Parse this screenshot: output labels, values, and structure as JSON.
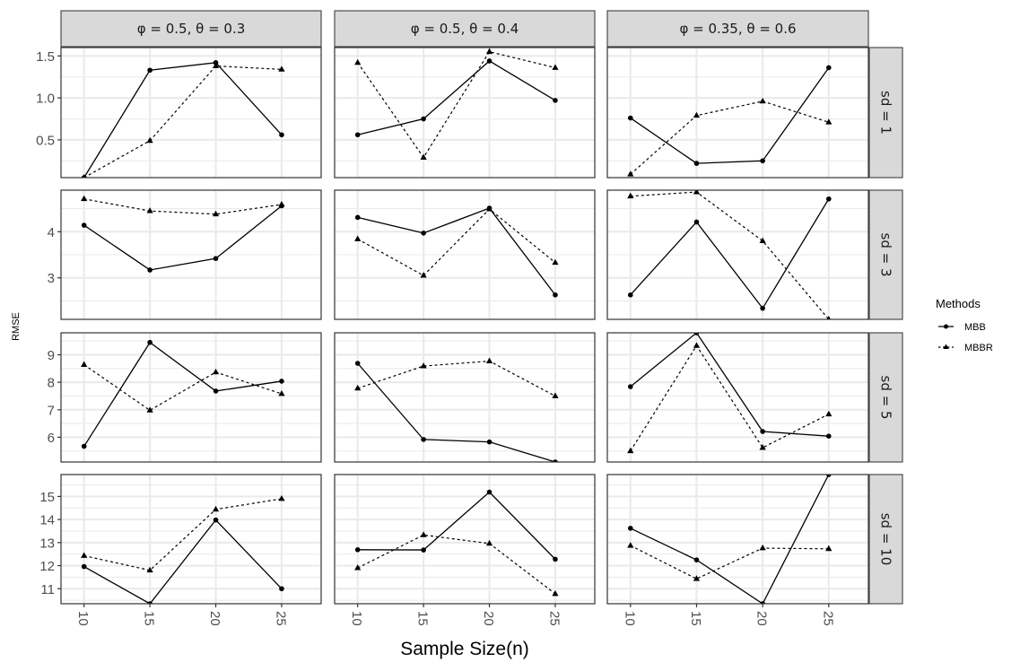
{
  "chart_data": {
    "type": "line",
    "title": "",
    "xlabel": "Sample Size(n)",
    "ylabel": "RMSE",
    "x": [
      10,
      15,
      20,
      25
    ],
    "x_tick_labels": [
      "10",
      "15",
      "20",
      "25"
    ],
    "grid": true,
    "legend": {
      "title": "Methods",
      "position": "right",
      "entries": [
        {
          "name": "MBB",
          "linetype": "solid",
          "marker": "circle"
        },
        {
          "name": "MBBR",
          "linetype": "dashed",
          "marker": "triangle"
        }
      ]
    },
    "columns": [
      {
        "label": "φ = 0.5, θ = 0.3"
      },
      {
        "label": "φ = 0.5, θ = 0.4"
      },
      {
        "label": "φ = 0.35, θ = 0.6"
      }
    ],
    "rows": [
      {
        "label": "sd = 1",
        "ylim": [
          0.05,
          1.6
        ],
        "ticks": [
          0.5,
          1.0,
          1.5
        ],
        "tick_labels": [
          "0.5",
          "1.0",
          "1.5"
        ],
        "minor": [
          0.25,
          0.75,
          1.25
        ]
      },
      {
        "label": "sd = 3",
        "ylim": [
          2.1,
          4.9
        ],
        "ticks": [
          3,
          4
        ],
        "tick_labels": [
          "3",
          "4"
        ],
        "minor": [
          2.5,
          3.5,
          4.5
        ]
      },
      {
        "label": "sd = 5",
        "ylim": [
          5.1,
          9.8
        ],
        "ticks": [
          6,
          7,
          8,
          9
        ],
        "tick_labels": [
          "6",
          "7",
          "8",
          "9"
        ],
        "minor": [
          5.5,
          6.5,
          7.5,
          8.5,
          9.5
        ]
      },
      {
        "label": "sd = 10",
        "ylim": [
          10.35,
          15.95
        ],
        "ticks": [
          11,
          12,
          13,
          14,
          15
        ],
        "tick_labels": [
          "11",
          "12",
          "13",
          "14",
          "15"
        ],
        "minor": [
          10.5,
          11.5,
          12.5,
          13.5,
          14.5,
          15.5
        ]
      }
    ],
    "panels": [
      {
        "row": 0,
        "col": 0,
        "series": [
          {
            "name": "MBB",
            "values": [
              0.05,
              1.33,
              1.42,
              0.56
            ]
          },
          {
            "name": "MBBR",
            "values": [
              0.05,
              0.49,
              1.38,
              1.34
            ]
          }
        ]
      },
      {
        "row": 0,
        "col": 1,
        "series": [
          {
            "name": "MBB",
            "values": [
              0.56,
              0.75,
              1.44,
              0.97
            ]
          },
          {
            "name": "MBBR",
            "values": [
              1.42,
              0.29,
              1.55,
              1.36
            ]
          }
        ]
      },
      {
        "row": 0,
        "col": 2,
        "series": [
          {
            "name": "MBB",
            "values": [
              0.76,
              0.22,
              0.25,
              1.36
            ]
          },
          {
            "name": "MBBR",
            "values": [
              0.09,
              0.79,
              0.96,
              0.71
            ]
          }
        ]
      },
      {
        "row": 1,
        "col": 0,
        "series": [
          {
            "name": "MBB",
            "values": [
              4.14,
              3.17,
              3.42,
              4.56
            ]
          },
          {
            "name": "MBBR",
            "values": [
              4.71,
              4.45,
              4.38,
              4.59
            ]
          }
        ]
      },
      {
        "row": 1,
        "col": 1,
        "series": [
          {
            "name": "MBB",
            "values": [
              4.31,
              3.97,
              4.51,
              2.63
            ]
          },
          {
            "name": "MBBR",
            "values": [
              3.84,
              3.05,
              4.49,
              3.33
            ]
          }
        ]
      },
      {
        "row": 1,
        "col": 2,
        "series": [
          {
            "name": "MBB",
            "values": [
              2.63,
              4.21,
              2.34,
              4.71
            ]
          },
          {
            "name": "MBBR",
            "values": [
              4.77,
              4.86,
              3.8,
              2.1
            ]
          }
        ]
      },
      {
        "row": 2,
        "col": 0,
        "series": [
          {
            "name": "MBB",
            "values": [
              5.67,
              9.45,
              7.68,
              8.04
            ]
          },
          {
            "name": "MBBR",
            "values": [
              8.64,
              6.98,
              8.37,
              7.58
            ]
          }
        ]
      },
      {
        "row": 2,
        "col": 1,
        "series": [
          {
            "name": "MBB",
            "values": [
              8.69,
              5.92,
              5.83,
              5.1
            ]
          },
          {
            "name": "MBBR",
            "values": [
              7.78,
              8.59,
              8.77,
              7.5
            ]
          }
        ]
      },
      {
        "row": 2,
        "col": 2,
        "series": [
          {
            "name": "MBB",
            "values": [
              7.84,
              9.8,
              6.21,
              6.04
            ]
          },
          {
            "name": "MBBR",
            "values": [
              5.5,
              9.33,
              5.62,
              6.84
            ]
          }
        ]
      },
      {
        "row": 3,
        "col": 0,
        "series": [
          {
            "name": "MBB",
            "values": [
              11.96,
              10.35,
              13.98,
              11.0
            ]
          },
          {
            "name": "MBBR",
            "values": [
              12.43,
              11.8,
              14.44,
              14.9
            ]
          }
        ]
      },
      {
        "row": 3,
        "col": 1,
        "series": [
          {
            "name": "MBB",
            "values": [
              12.69,
              12.68,
              15.19,
              12.28
            ]
          },
          {
            "name": "MBBR",
            "values": [
              11.9,
              13.33,
              12.96,
              10.78
            ]
          }
        ]
      },
      {
        "row": 3,
        "col": 2,
        "series": [
          {
            "name": "MBB",
            "values": [
              13.62,
              12.25,
              10.35,
              15.95
            ]
          },
          {
            "name": "MBBR",
            "values": [
              12.87,
              11.43,
              12.76,
              12.73
            ]
          }
        ]
      }
    ],
    "colors": {
      "line": "#000000",
      "strip_fill": "#d9d9d9",
      "grid": "#ebebeb",
      "border": "#333333"
    }
  }
}
